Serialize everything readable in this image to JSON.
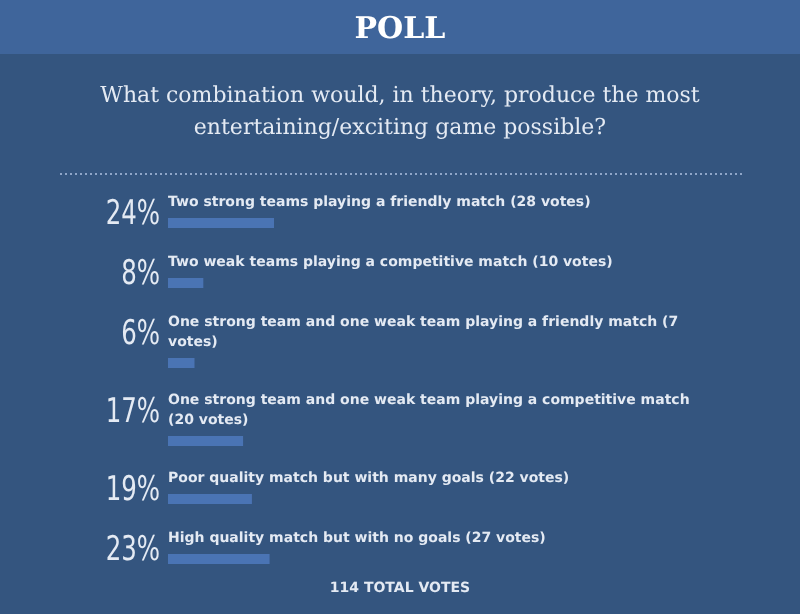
{
  "chart_data": {
    "type": "bar",
    "orientation": "horizontal",
    "title": "POLL",
    "subtitle": "What combination would, in theory, produce the most entertaining/exciting game possible?",
    "categories": [
      "Two strong teams playing a friendly match (28 votes)",
      "Two weak teams playing a competitive match (10 votes)",
      "One strong team and one weak team playing a friendly match (7 votes)",
      "One strong team and one weak team playing a competitive match (20 votes)",
      "Poor quality match but with many goals (22 votes)",
      "High quality match but with no goals (27 votes)"
    ],
    "values": [
      24,
      8,
      6,
      17,
      19,
      23
    ],
    "value_labels": [
      "24%",
      "8%",
      "6%",
      "17%",
      "19%",
      "23%"
    ],
    "color": "#4a74b4",
    "annotations": [
      "114 TOTAL VOTES"
    ]
  }
}
